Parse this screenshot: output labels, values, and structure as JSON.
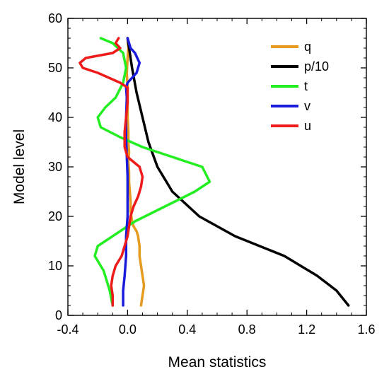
{
  "chart_data": {
    "type": "line",
    "title": "",
    "xlabel": "Mean statistics",
    "ylabel": "Model level",
    "xlim": [
      -0.4,
      1.6
    ],
    "ylim": [
      0,
      60
    ],
    "xticks": [
      "-0.4",
      "0.0",
      "0.4",
      "0.8",
      "1.2",
      "1.6"
    ],
    "yticks": [
      "0",
      "10",
      "20",
      "30",
      "40",
      "50",
      "60"
    ],
    "grid": false,
    "legend_position": "top-right",
    "series": [
      {
        "name": "q",
        "color": "#e69a1f",
        "points": [
          [
            0.09,
            2
          ],
          [
            0.1,
            4
          ],
          [
            0.11,
            6
          ],
          [
            0.1,
            8
          ],
          [
            0.09,
            10
          ],
          [
            0.08,
            12
          ],
          [
            0.08,
            14
          ],
          [
            0.07,
            16
          ],
          [
            0.06,
            17
          ],
          [
            0.04,
            18
          ],
          [
            0.03,
            19
          ],
          [
            0.02,
            21
          ],
          [
            0.02,
            23
          ],
          [
            0.015,
            25
          ],
          [
            0.01,
            27
          ],
          [
            0.01,
            29
          ],
          [
            0.005,
            31
          ],
          [
            0.01,
            33
          ],
          [
            0.005,
            35
          ],
          [
            0.005,
            37
          ],
          [
            0.0,
            40
          ],
          [
            0.0,
            43
          ],
          [
            0.0,
            46
          ],
          [
            -0.005,
            49
          ],
          [
            0.0,
            52
          ],
          [
            0.005,
            54
          ],
          [
            0.0,
            56
          ]
        ]
      },
      {
        "name": "p/10",
        "color": "#000000",
        "points": [
          [
            1.48,
            2
          ],
          [
            1.4,
            5
          ],
          [
            1.27,
            8
          ],
          [
            1.05,
            12
          ],
          [
            0.72,
            16
          ],
          [
            0.48,
            20
          ],
          [
            0.3,
            25
          ],
          [
            0.2,
            30
          ],
          [
            0.14,
            35
          ],
          [
            0.1,
            40
          ],
          [
            0.06,
            45
          ],
          [
            0.03,
            50
          ],
          [
            0.01,
            54
          ],
          [
            0.0,
            56
          ]
        ]
      },
      {
        "name": "t",
        "color": "#22ee22",
        "points": [
          [
            -0.1,
            2
          ],
          [
            -0.12,
            5
          ],
          [
            -0.16,
            9
          ],
          [
            -0.22,
            12
          ],
          [
            -0.2,
            14
          ],
          [
            -0.1,
            16
          ],
          [
            0.05,
            19
          ],
          [
            0.25,
            22
          ],
          [
            0.45,
            25
          ],
          [
            0.55,
            27
          ],
          [
            0.5,
            30
          ],
          [
            0.3,
            32
          ],
          [
            0.1,
            34
          ],
          [
            -0.05,
            36
          ],
          [
            -0.18,
            38
          ],
          [
            -0.2,
            40
          ],
          [
            -0.15,
            42
          ],
          [
            -0.08,
            44
          ],
          [
            -0.03,
            47
          ],
          [
            -0.01,
            50
          ],
          [
            -0.03,
            53
          ],
          [
            -0.1,
            55
          ],
          [
            -0.18,
            56
          ]
        ]
      },
      {
        "name": "v",
        "color": "#1a1add",
        "points": [
          [
            -0.03,
            2
          ],
          [
            -0.03,
            5
          ],
          [
            -0.02,
            8
          ],
          [
            -0.01,
            12
          ],
          [
            -0.01,
            16
          ],
          [
            0.0,
            20
          ],
          [
            0.0,
            24
          ],
          [
            0.0,
            28
          ],
          [
            -0.005,
            32
          ],
          [
            -0.01,
            36
          ],
          [
            -0.01,
            40
          ],
          [
            -0.005,
            44
          ],
          [
            -0.01,
            46
          ],
          [
            0.0,
            47
          ],
          [
            0.06,
            49
          ],
          [
            0.08,
            51
          ],
          [
            0.05,
            53
          ],
          [
            0.02,
            54
          ],
          [
            0.0,
            56
          ]
        ]
      },
      {
        "name": "u",
        "color": "#ee1b1b",
        "points": [
          [
            -0.1,
            2
          ],
          [
            -0.1,
            4
          ],
          [
            -0.11,
            6
          ],
          [
            -0.1,
            8
          ],
          [
            -0.08,
            10
          ],
          [
            -0.04,
            12
          ],
          [
            -0.02,
            14
          ],
          [
            0.0,
            16
          ],
          [
            0.01,
            18
          ],
          [
            0.02,
            20
          ],
          [
            0.04,
            22
          ],
          [
            0.07,
            24
          ],
          [
            0.09,
            26
          ],
          [
            0.1,
            28
          ],
          [
            0.08,
            30
          ],
          [
            0.04,
            31
          ],
          [
            0.0,
            32
          ],
          [
            -0.02,
            34
          ],
          [
            -0.02,
            37
          ],
          [
            -0.01,
            40
          ],
          [
            0.0,
            43
          ],
          [
            0.0,
            46
          ],
          [
            -0.05,
            47
          ],
          [
            -0.2,
            49
          ],
          [
            -0.3,
            50
          ],
          [
            -0.32,
            51
          ],
          [
            -0.28,
            52
          ],
          [
            -0.1,
            53
          ],
          [
            -0.05,
            54
          ],
          [
            -0.08,
            55
          ],
          [
            -0.06,
            56
          ]
        ]
      }
    ]
  }
}
